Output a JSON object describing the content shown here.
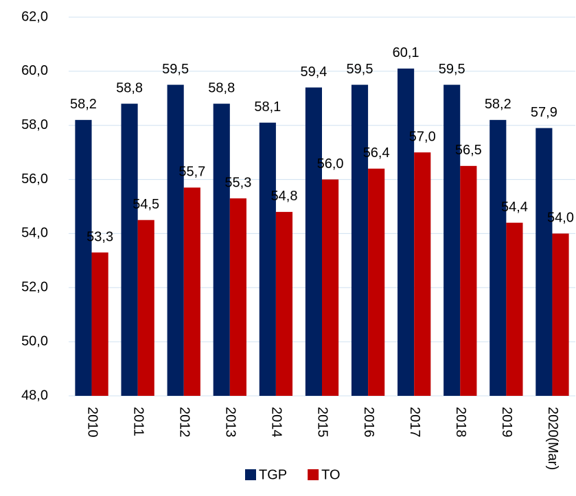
{
  "chart_data": {
    "type": "bar",
    "categories": [
      "2010",
      "2011",
      "2012",
      "2013",
      "2014",
      "2015",
      "2016",
      "2017",
      "2018",
      "2019",
      "2020(Mar)"
    ],
    "series": [
      {
        "name": "TGP",
        "color": "#002060",
        "values": [
          58.2,
          58.8,
          59.5,
          58.8,
          58.1,
          59.4,
          59.5,
          60.1,
          59.5,
          58.2,
          57.9
        ],
        "value_labels": [
          "58,2",
          "58,8",
          "59,5",
          "58,8",
          "58,1",
          "59,4",
          "59,5",
          "60,1",
          "59,5",
          "58,2",
          "57,9"
        ]
      },
      {
        "name": "TO",
        "color": "#c00000",
        "values": [
          53.3,
          54.5,
          55.7,
          55.3,
          54.8,
          56.0,
          56.4,
          57.0,
          56.5,
          54.4,
          54.0
        ],
        "value_labels": [
          "53,3",
          "54,5",
          "55,7",
          "55,3",
          "54,8",
          "56,0",
          "56,4",
          "57,0",
          "56,5",
          "54,4",
          "54,0"
        ]
      }
    ],
    "ylim": [
      48,
      62
    ],
    "yticks": [
      {
        "value": 48,
        "label": "48,0"
      },
      {
        "value": 50,
        "label": "50,0"
      },
      {
        "value": 52,
        "label": "52,0"
      },
      {
        "value": 54,
        "label": "54,0"
      },
      {
        "value": 56,
        "label": "56,0"
      },
      {
        "value": 58,
        "label": "58,0"
      },
      {
        "value": 60,
        "label": "60,0"
      },
      {
        "value": 62,
        "label": "62,0"
      }
    ],
    "grid": true
  }
}
